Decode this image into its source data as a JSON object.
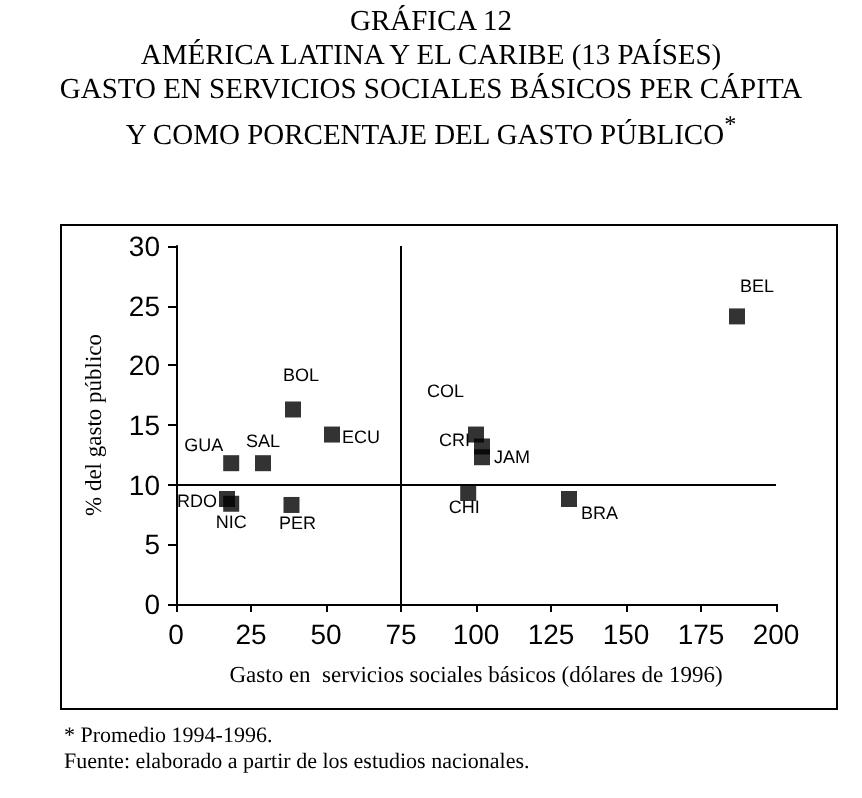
{
  "chart_data": {
    "type": "scatter",
    "title": "GRÁFICA 12",
    "subtitle": "AMÉRICA LATINA Y EL CARIBE (13 PAÍSES)\nGASTO EN SERVICIOS SOCIALES BÁSICOS PER CÁPITA\nY COMO PORCENTAJE DEL GASTO PÚBLICO$^{*}$",
    "xlabel": "Gasto en  servicios sociales básicos (dólares de 1996)",
    "ylabel": "% del gasto público",
    "x": [
      18.4,
      29,
      39,
      52,
      38.5,
      17,
      18.4,
      100,
      102,
      102,
      97.4,
      131,
      187
    ],
    "values": [
      11.8,
      11.8,
      16.3,
      14.2,
      8.3,
      8.8,
      8.4,
      14.2,
      13.2,
      12.3,
      9.3,
      8.8,
      24.1
    ],
    "color": "#000000",
    "marker": "square",
    "grid": false,
    "xlim": [
      0,
      200
    ],
    "xticks": [
      0,
      25,
      50,
      75,
      100,
      125,
      150,
      175,
      200
    ],
    "ylim": [
      0,
      30
    ],
    "yticks": [
      0,
      5,
      10,
      15,
      20,
      25,
      30
    ],
    "ref_lines": [
      {
        "axis": "x",
        "value": 75,
        "color": "#000000"
      },
      {
        "axis": "y",
        "value": 10,
        "color": "#000000"
      }
    ],
    "annotations": [
      {
        "text": "GUA",
        "x": 18.4,
        "y": 11.8
      },
      {
        "text": "SAL",
        "x": 29,
        "y": 11.8
      },
      {
        "text": "BOL",
        "x": 39,
        "y": 16.3
      },
      {
        "text": "ECU",
        "x": 52,
        "y": 14.2
      },
      {
        "text": "PER",
        "x": 38.5,
        "y": 8.3
      },
      {
        "text": "RDO",
        "x": 17,
        "y": 8.8
      },
      {
        "text": "NIC",
        "x": 18.4,
        "y": 8.4
      },
      {
        "text": "COL",
        "x": 100,
        "y": 14.2
      },
      {
        "text": "CRI",
        "x": 102,
        "y": 13.2
      },
      {
        "text": "JAM",
        "x": 102,
        "y": 12.3
      },
      {
        "text": "CHI",
        "x": 97.4,
        "y": 9.3
      },
      {
        "text": "BRA",
        "x": 131,
        "y": 8.8
      },
      {
        "text": "BEL",
        "x": 187,
        "y": 24.1
      },
      "* Promedio 1994-1996.",
      "Fuente: elaborado a partir de los estudios nacionales."
    ]
  }
}
